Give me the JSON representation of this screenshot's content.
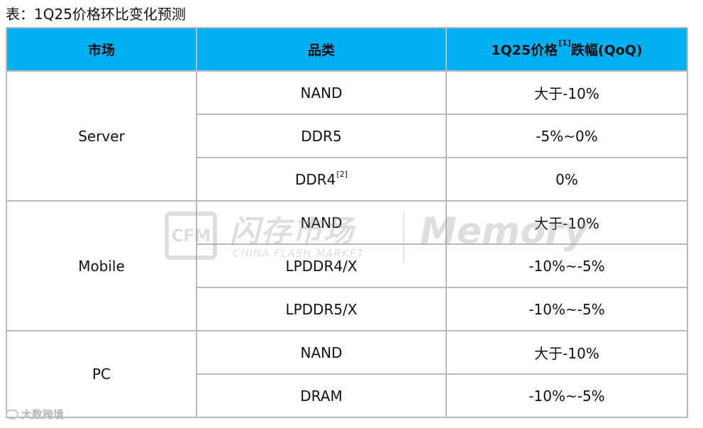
{
  "caption": "表：1Q25价格环比变化预测",
  "table": {
    "headers": {
      "market": "市场",
      "category": "品类",
      "price_main": "1Q25价格",
      "price_sup": "[1]",
      "price_tail": "跌幅(QoQ)"
    },
    "groups": [
      {
        "market": "Server",
        "rows": [
          {
            "category": "NAND",
            "sup": "",
            "value": "大于-10%"
          },
          {
            "category": "DDR5",
            "sup": "",
            "value": "-5%~0%"
          },
          {
            "category": "DDR4",
            "sup": "[2]",
            "value": "0%"
          }
        ]
      },
      {
        "market": "Mobile",
        "rows": [
          {
            "category": "NAND",
            "sup": "",
            "value": "大于-10%"
          },
          {
            "category": "LPDDR4/X",
            "sup": "",
            "value": "-10%~-5%"
          },
          {
            "category": "LPDDR5/X",
            "sup": "",
            "value": "-10%~-5%"
          }
        ]
      },
      {
        "market": "PC",
        "rows": [
          {
            "category": "NAND",
            "sup": "",
            "value": "大于-10%"
          },
          {
            "category": "DRAM",
            "sup": "",
            "value": "-10%~-5%"
          }
        ]
      }
    ]
  },
  "watermark": {
    "logo": "CFM",
    "cn": "闪存市场",
    "en": "CHINA FLASH MARKET",
    "brand": "Memory"
  },
  "footer_mark": "大数跨境",
  "colors": {
    "header_bg": "#00b0f0",
    "border": "#b9b9b9"
  }
}
